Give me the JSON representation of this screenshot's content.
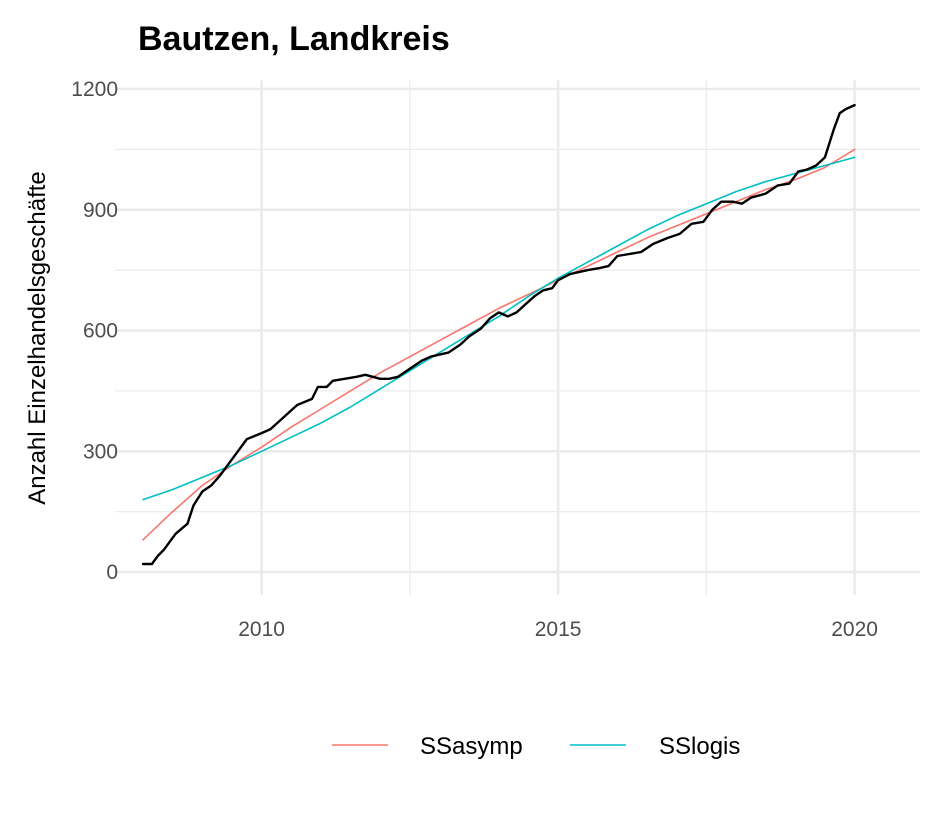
{
  "chart_data": {
    "type": "line",
    "title": "Bautzen, Landkreis",
    "xlabel": "",
    "ylabel": "Anzahl Einzelhandelsgeschäfte",
    "xlim": [
      2008,
      2020
    ],
    "ylim": [
      0,
      1200
    ],
    "x_major_ticks": [
      2010,
      2015,
      2020
    ],
    "x_minor_ticks": [
      2012.5,
      2017.5
    ],
    "y_major_ticks": [
      0,
      300,
      600,
      900,
      1200
    ],
    "y_minor_ticks": [
      150,
      450,
      750,
      1050
    ],
    "x_tick_labels": [
      "2010",
      "2015",
      "2020"
    ],
    "y_tick_labels": [
      "0",
      "300",
      "600",
      "900",
      "1200"
    ],
    "grid": true,
    "legend": {
      "position": "bottom",
      "entries": [
        "SSasymp",
        "SSlogis"
      ]
    },
    "colors": {
      "observed": "#000000",
      "SSasymp": "#F8766D",
      "SSlogis": "#00BFC4"
    },
    "series": [
      {
        "key": "observed",
        "color": "#000000",
        "points": [
          [
            2008.0,
            20
          ],
          [
            2008.15,
            20
          ],
          [
            2008.25,
            40
          ],
          [
            2008.35,
            55
          ],
          [
            2008.45,
            75
          ],
          [
            2008.55,
            95
          ],
          [
            2008.75,
            120
          ],
          [
            2008.85,
            165
          ],
          [
            2009.0,
            200
          ],
          [
            2009.15,
            215
          ],
          [
            2009.3,
            240
          ],
          [
            2009.45,
            270
          ],
          [
            2009.6,
            300
          ],
          [
            2009.75,
            330
          ],
          [
            2010.0,
            345
          ],
          [
            2010.15,
            355
          ],
          [
            2010.3,
            375
          ],
          [
            2010.45,
            395
          ],
          [
            2010.6,
            415
          ],
          [
            2010.85,
            430
          ],
          [
            2010.95,
            460
          ],
          [
            2011.1,
            460
          ],
          [
            2011.2,
            475
          ],
          [
            2011.4,
            480
          ],
          [
            2011.6,
            485
          ],
          [
            2011.75,
            490
          ],
          [
            2012.0,
            480
          ],
          [
            2012.15,
            480
          ],
          [
            2012.3,
            485
          ],
          [
            2012.5,
            505
          ],
          [
            2012.7,
            525
          ],
          [
            2012.85,
            535
          ],
          [
            2013.0,
            540
          ],
          [
            2013.15,
            545
          ],
          [
            2013.35,
            565
          ],
          [
            2013.5,
            585
          ],
          [
            2013.7,
            605
          ],
          [
            2013.85,
            630
          ],
          [
            2014.0,
            645
          ],
          [
            2014.15,
            635
          ],
          [
            2014.3,
            645
          ],
          [
            2014.45,
            665
          ],
          [
            2014.6,
            685
          ],
          [
            2014.75,
            700
          ],
          [
            2014.9,
            705
          ],
          [
            2015.0,
            725
          ],
          [
            2015.2,
            740
          ],
          [
            2015.35,
            745
          ],
          [
            2015.5,
            750
          ],
          [
            2015.7,
            755
          ],
          [
            2015.85,
            760
          ],
          [
            2016.0,
            785
          ],
          [
            2016.2,
            790
          ],
          [
            2016.4,
            795
          ],
          [
            2016.6,
            815
          ],
          [
            2016.85,
            830
          ],
          [
            2017.05,
            840
          ],
          [
            2017.25,
            865
          ],
          [
            2017.45,
            870
          ],
          [
            2017.6,
            900
          ],
          [
            2017.75,
            920
          ],
          [
            2017.95,
            920
          ],
          [
            2018.1,
            915
          ],
          [
            2018.25,
            930
          ],
          [
            2018.5,
            940
          ],
          [
            2018.7,
            960
          ],
          [
            2018.9,
            965
          ],
          [
            2019.05,
            995
          ],
          [
            2019.2,
            1000
          ],
          [
            2019.35,
            1010
          ],
          [
            2019.5,
            1030
          ],
          [
            2019.65,
            1100
          ],
          [
            2019.75,
            1140
          ],
          [
            2019.85,
            1150
          ],
          [
            2020.0,
            1160
          ]
        ]
      },
      {
        "key": "SSasymp",
        "name": "SSasymp",
        "color": "#F8766D",
        "points": [
          [
            2008.0,
            80
          ],
          [
            2008.5,
            150
          ],
          [
            2009.0,
            215
          ],
          [
            2009.5,
            265
          ],
          [
            2010.0,
            310
          ],
          [
            2010.5,
            360
          ],
          [
            2011.0,
            405
          ],
          [
            2011.5,
            450
          ],
          [
            2012.0,
            495
          ],
          [
            2012.5,
            535
          ],
          [
            2013.0,
            575
          ],
          [
            2013.5,
            615
          ],
          [
            2014.0,
            655
          ],
          [
            2014.5,
            690
          ],
          [
            2015.0,
            725
          ],
          [
            2015.5,
            760
          ],
          [
            2016.0,
            795
          ],
          [
            2016.5,
            830
          ],
          [
            2017.0,
            860
          ],
          [
            2017.5,
            890
          ],
          [
            2018.0,
            920
          ],
          [
            2018.5,
            950
          ],
          [
            2019.0,
            975
          ],
          [
            2019.5,
            1005
          ],
          [
            2020.0,
            1050
          ]
        ]
      },
      {
        "key": "SSlogis",
        "name": "SSlogis",
        "color": "#00BFC4",
        "points": [
          [
            2008.0,
            180
          ],
          [
            2008.5,
            205
          ],
          [
            2009.0,
            235
          ],
          [
            2009.5,
            265
          ],
          [
            2010.0,
            300
          ],
          [
            2010.5,
            335
          ],
          [
            2011.0,
            370
          ],
          [
            2011.5,
            410
          ],
          [
            2012.0,
            455
          ],
          [
            2012.5,
            500
          ],
          [
            2013.0,
            545
          ],
          [
            2013.5,
            590
          ],
          [
            2014.0,
            635
          ],
          [
            2014.5,
            685
          ],
          [
            2015.0,
            730
          ],
          [
            2015.5,
            770
          ],
          [
            2016.0,
            810
          ],
          [
            2016.5,
            850
          ],
          [
            2017.0,
            885
          ],
          [
            2017.5,
            915
          ],
          [
            2018.0,
            945
          ],
          [
            2018.5,
            970
          ],
          [
            2019.0,
            990
          ],
          [
            2019.5,
            1010
          ],
          [
            2020.0,
            1030
          ]
        ]
      }
    ]
  }
}
